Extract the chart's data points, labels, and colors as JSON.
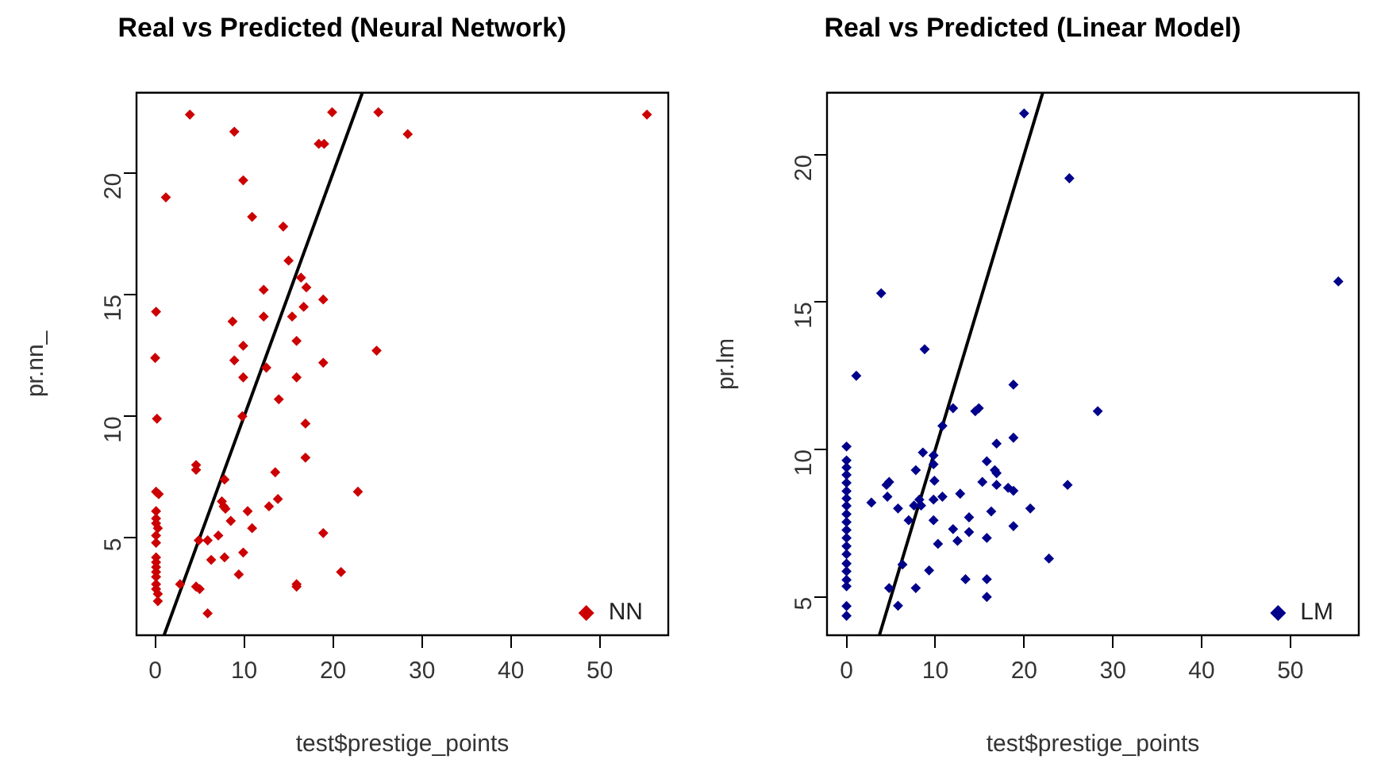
{
  "chart_data": [
    {
      "type": "scatter",
      "title": "Real vs Predicted (Neural Network)",
      "xlabel": "test$prestige_points",
      "ylabel": "pr.nn_",
      "xlim": [
        -2.1,
        57.7
      ],
      "ylim": [
        1.0,
        23.3
      ],
      "xticks": [
        0,
        10,
        20,
        30,
        40,
        50
      ],
      "yticks": [
        5,
        10,
        15,
        20
      ],
      "grid": false,
      "legend": "bottom right",
      "marker": "diamond",
      "series": [
        {
          "name": "NN",
          "color": "#cc0000",
          "x": [
            3.9,
            8.9,
            19.9,
            25.1,
            28.4,
            55.3,
            18.4,
            19.0,
            9.9,
            1.2,
            10.9,
            14.4,
            15.0,
            16.4,
            17.0,
            12.2,
            18.9,
            16.7,
            0.1,
            12.2,
            15.4,
            8.7,
            15.9,
            9.9,
            24.9,
            0,
            8.9,
            18.9,
            12.5,
            9.9,
            15.9,
            13.9,
            9.8,
            0.2,
            16.9,
            16.9,
            4.6,
            4.6,
            13.5,
            7.8,
            22.8,
            0.1,
            0.4,
            13.8,
            7.5,
            7.7,
            7.9,
            12.8,
            0.1,
            0.1,
            0.1,
            0.3,
            10.4,
            8.5,
            10.9,
            18.9,
            0.1,
            0.1,
            7.1,
            5.9,
            4.9,
            0.1,
            0.1,
            0.1,
            0.1,
            0.1,
            0.1,
            0.1,
            0.3,
            0.3,
            9.9,
            7.8,
            6.3,
            20.9,
            9.4,
            15.9,
            15.9,
            2.8,
            4.6,
            5.0,
            5.9
          ],
          "values": [
            22.4,
            21.7,
            22.5,
            22.5,
            21.6,
            22.4,
            21.2,
            21.2,
            19.7,
            19.0,
            18.2,
            17.8,
            16.4,
            15.7,
            15.3,
            15.2,
            14.8,
            14.5,
            14.3,
            14.1,
            14.1,
            13.9,
            13.1,
            12.9,
            12.7,
            12.4,
            12.3,
            12.2,
            12.0,
            11.6,
            11.6,
            10.7,
            10.0,
            9.9,
            9.7,
            8.3,
            8.0,
            7.8,
            7.7,
            7.4,
            6.9,
            6.9,
            6.8,
            6.6,
            6.5,
            6.3,
            6.2,
            6.3,
            6.1,
            5.8,
            5.6,
            5.4,
            6.1,
            5.7,
            5.4,
            5.2,
            5.1,
            4.8,
            5.1,
            4.9,
            4.9,
            4.2,
            4.0,
            3.8,
            3.6,
            3.4,
            3.1,
            2.9,
            2.7,
            2.4,
            4.4,
            4.2,
            4.1,
            3.6,
            3.5,
            3.1,
            3.0,
            3.1,
            3.0,
            2.9,
            1.9
          ]
        },
        {
          "type": "line",
          "marker": "none",
          "color": "#000000",
          "x": [
            1.0,
            23.3
          ],
          "values": [
            1.0,
            23.3
          ]
        }
      ]
    },
    {
      "type": "scatter",
      "title": "Real vs Predicted (Linear Model)",
      "xlabel": "test$prestige_points",
      "ylabel": "pr.lm",
      "xlim": [
        -2.2,
        57.7
      ],
      "ylim": [
        3.7,
        22.1
      ],
      "xticks": [
        0,
        10,
        20,
        30,
        40,
        50
      ],
      "yticks": [
        5,
        10,
        15,
        20
      ],
      "grid": false,
      "legend": "bottom right",
      "marker": "diamond",
      "series": [
        {
          "name": "LM",
          "color": "#00008b",
          "x": [
            20.0,
            25.1,
            55.4,
            3.9,
            8.8,
            1.1,
            18.8,
            28.3,
            12.0,
            14.5,
            14.9,
            10.8,
            0,
            16.9,
            18.8,
            8.6,
            0,
            0,
            0,
            0,
            0,
            0,
            0,
            0,
            0,
            0,
            0,
            0,
            0,
            0,
            0,
            0,
            0,
            0,
            0,
            9.8,
            9.8,
            15.8,
            7.8,
            16.7,
            16.9,
            9.9,
            15.3,
            16.9,
            4.5,
            4.8,
            18.2,
            18.8,
            24.9,
            4.6,
            2.8,
            8.2,
            7.6,
            8.4,
            5.8,
            10.8,
            9.8,
            12.8,
            20.7,
            16.3,
            7.0,
            9.8,
            13.8,
            18.8,
            12.0,
            13.8,
            12.5,
            15.8,
            10.3,
            22.8,
            6.3,
            9.3,
            13.4,
            15.8,
            4.8,
            7.8,
            15.8,
            5.8
          ],
          "values": [
            21.4,
            19.2,
            15.7,
            15.3,
            13.4,
            12.5,
            12.2,
            11.3,
            11.4,
            11.3,
            11.4,
            10.8,
            10.1,
            10.2,
            10.4,
            9.9,
            9.63,
            9.39,
            9.14,
            8.87,
            8.59,
            8.34,
            8.09,
            7.81,
            7.54,
            7.27,
            7.0,
            6.72,
            6.45,
            6.13,
            5.87,
            5.58,
            5.36,
            4.69,
            4.36,
            9.8,
            9.5,
            9.6,
            9.3,
            9.3,
            9.2,
            8.94,
            8.9,
            8.8,
            8.8,
            8.9,
            8.7,
            8.6,
            8.8,
            8.4,
            8.2,
            8.3,
            8.1,
            8.1,
            8.0,
            8.4,
            8.3,
            8.5,
            8.0,
            7.9,
            7.6,
            7.6,
            7.7,
            7.4,
            7.3,
            7.2,
            6.9,
            7.0,
            6.8,
            6.3,
            6.1,
            5.9,
            5.6,
            5.6,
            5.3,
            5.3,
            5.0,
            4.7
          ]
        },
        {
          "type": "line",
          "marker": "none",
          "color": "#000000",
          "x": [
            3.7,
            22.1
          ],
          "values": [
            3.7,
            22.1
          ]
        }
      ]
    }
  ]
}
